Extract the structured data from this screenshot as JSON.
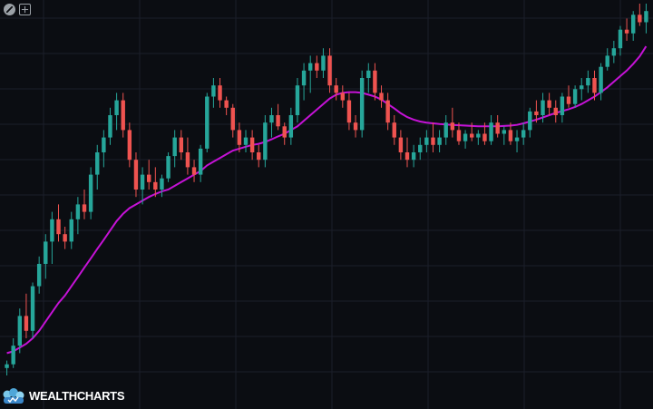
{
  "brand": {
    "name": "WEALTHCHARTS"
  },
  "toolbar": {
    "icons": [
      "draw-tool-icon",
      "add-icon"
    ]
  },
  "colors": {
    "background": "#0b0d12",
    "grid": "#1b1f2a",
    "up": "#26a69a",
    "down": "#ef5350",
    "ma": "#c512d6"
  },
  "chart_data": {
    "type": "candlestick",
    "grid": true,
    "ylim": [
      0,
      100
    ],
    "candles": [
      [
        2,
        4,
        0,
        3
      ],
      [
        3,
        10,
        2,
        8
      ],
      [
        8,
        18,
        6,
        16
      ],
      [
        16,
        22,
        10,
        12
      ],
      [
        12,
        25,
        10,
        24
      ],
      [
        24,
        32,
        22,
        30
      ],
      [
        30,
        38,
        26,
        36
      ],
      [
        36,
        44,
        30,
        42
      ],
      [
        42,
        46,
        36,
        38
      ],
      [
        38,
        40,
        34,
        36
      ],
      [
        36,
        44,
        34,
        42
      ],
      [
        42,
        48,
        38,
        46
      ],
      [
        46,
        50,
        42,
        44
      ],
      [
        44,
        56,
        42,
        54
      ],
      [
        54,
        62,
        50,
        60
      ],
      [
        60,
        66,
        56,
        64
      ],
      [
        64,
        72,
        62,
        70
      ],
      [
        70,
        76,
        66,
        74
      ],
      [
        74,
        76,
        64,
        66
      ],
      [
        66,
        68,
        56,
        58
      ],
      [
        58,
        60,
        48,
        50
      ],
      [
        50,
        56,
        46,
        54
      ],
      [
        54,
        58,
        50,
        52
      ],
      [
        52,
        56,
        48,
        50
      ],
      [
        50,
        54,
        48,
        53
      ],
      [
        53,
        60,
        52,
        59
      ],
      [
        59,
        66,
        56,
        64
      ],
      [
        64,
        66,
        58,
        60
      ],
      [
        60,
        64,
        54,
        56
      ],
      [
        56,
        58,
        52,
        54
      ],
      [
        54,
        62,
        52,
        61
      ],
      [
        61,
        76,
        60,
        75
      ],
      [
        75,
        80,
        72,
        78
      ],
      [
        78,
        80,
        72,
        74
      ],
      [
        74,
        75,
        70,
        72
      ],
      [
        72,
        73,
        64,
        66
      ],
      [
        66,
        68,
        60,
        62
      ],
      [
        62,
        66,
        60,
        64
      ],
      [
        64,
        66,
        58,
        60
      ],
      [
        60,
        62,
        56,
        58
      ],
      [
        58,
        70,
        56,
        68
      ],
      [
        68,
        72,
        64,
        70
      ],
      [
        70,
        73,
        66,
        67
      ],
      [
        67,
        68,
        62,
        64
      ],
      [
        64,
        72,
        62,
        70
      ],
      [
        70,
        80,
        68,
        78
      ],
      [
        78,
        84,
        74,
        82
      ],
      [
        82,
        86,
        76,
        84
      ],
      [
        84,
        86,
        80,
        82
      ],
      [
        82,
        88,
        80,
        86
      ],
      [
        86,
        88,
        76,
        78
      ],
      [
        78,
        80,
        74,
        76
      ],
      [
        76,
        78,
        72,
        74
      ],
      [
        74,
        76,
        66,
        68
      ],
      [
        68,
        70,
        64,
        66
      ],
      [
        66,
        82,
        64,
        80
      ],
      [
        80,
        84,
        76,
        82
      ],
      [
        82,
        84,
        74,
        76
      ],
      [
        76,
        78,
        72,
        74
      ],
      [
        74,
        76,
        66,
        68
      ],
      [
        68,
        70,
        62,
        64
      ],
      [
        64,
        66,
        58,
        60
      ],
      [
        60,
        64,
        56,
        58
      ],
      [
        58,
        62,
        56,
        60
      ],
      [
        60,
        64,
        58,
        62
      ],
      [
        62,
        66,
        60,
        64
      ],
      [
        64,
        68,
        60,
        62
      ],
      [
        62,
        66,
        60,
        64
      ],
      [
        64,
        70,
        62,
        68
      ],
      [
        68,
        72,
        64,
        66
      ],
      [
        66,
        68,
        62,
        63
      ],
      [
        63,
        66,
        61,
        65
      ],
      [
        65,
        68,
        63,
        64
      ],
      [
        64,
        66,
        62,
        65
      ],
      [
        65,
        68,
        62,
        63
      ],
      [
        63,
        70,
        62,
        68
      ],
      [
        68,
        70,
        64,
        65
      ],
      [
        65,
        67,
        62,
        66
      ],
      [
        66,
        68,
        62,
        63
      ],
      [
        63,
        66,
        60,
        64
      ],
      [
        64,
        68,
        62,
        66
      ],
      [
        66,
        72,
        64,
        71
      ],
      [
        71,
        74,
        68,
        70
      ],
      [
        70,
        76,
        68,
        74
      ],
      [
        74,
        76,
        70,
        72
      ],
      [
        72,
        74,
        68,
        70
      ],
      [
        70,
        76,
        68,
        75
      ],
      [
        75,
        78,
        72,
        73
      ],
      [
        73,
        78,
        72,
        77
      ],
      [
        77,
        80,
        74,
        78
      ],
      [
        78,
        82,
        76,
        80
      ],
      [
        80,
        82,
        74,
        76
      ],
      [
        76,
        84,
        74,
        83
      ],
      [
        83,
        88,
        82,
        86
      ],
      [
        86,
        90,
        84,
        88
      ],
      [
        88,
        94,
        86,
        93
      ],
      [
        93,
        96,
        90,
        92
      ],
      [
        92,
        98,
        90,
        97
      ],
      [
        97,
        100,
        94,
        95
      ],
      [
        95,
        100,
        92,
        98
      ]
    ],
    "ma": [
      6,
      6.5,
      7.5,
      8.5,
      10,
      12,
      14.5,
      17,
      19.5,
      21.5,
      24,
      26.5,
      29,
      31.5,
      34,
      36.5,
      39,
      41.5,
      43.5,
      45,
      46,
      47,
      48,
      48.8,
      49.5,
      50,
      51,
      52,
      53,
      54,
      55,
      56.5,
      57.5,
      58.5,
      59.5,
      60.5,
      61,
      61.5,
      62,
      62.3,
      62.8,
      63.5,
      64.3,
      65,
      66,
      67,
      68.5,
      70,
      71.5,
      73,
      74.5,
      75.5,
      76,
      76.2,
      76.2,
      76,
      75.5,
      75,
      74.2,
      73,
      71.8,
      70.5,
      69.5,
      68.8,
      68.3,
      68,
      67.8,
      67.6,
      67.5,
      67.4,
      67.3,
      67.2,
      67.1,
      67,
      67,
      67,
      67,
      67.1,
      67.2,
      67.4,
      67.8,
      68.3,
      68.8,
      69.4,
      70,
      70.6,
      71.1,
      71.6,
      72.2,
      73,
      74,
      75,
      76.2,
      77.5,
      79,
      80.5,
      82,
      83.8,
      85.8,
      88.5
    ]
  }
}
